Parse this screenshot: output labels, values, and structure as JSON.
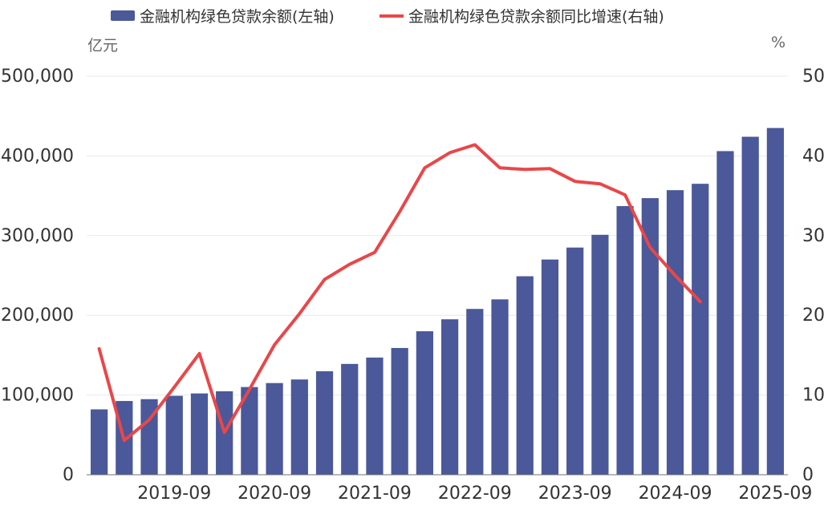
{
  "legend": {
    "bar_label": "金融机构绿色贷款余额(左轴)",
    "line_label": "金融机构绿色贷款余额同比增速(右轴)"
  },
  "units": {
    "left": "亿元",
    "right": "%"
  },
  "colors": {
    "bar": "#4B5899",
    "line": "#E8474A",
    "grid": "#E6E9F0",
    "axis": "#333333"
  },
  "chart_data": {
    "type": "bar",
    "title": "",
    "categories": [
      "2018-12",
      "2019-03",
      "2019-06",
      "2019-09",
      "2019-12",
      "2020-03",
      "2020-06",
      "2020-09",
      "2020-12",
      "2021-03",
      "2021-06",
      "2021-09",
      "2021-12",
      "2022-03",
      "2022-06",
      "2022-09",
      "2022-12",
      "2023-03",
      "2023-06",
      "2023-09",
      "2023-12",
      "2024-03",
      "2024-06",
      "2024-09",
      "2024-12",
      "2025-03",
      "2025-06",
      "2025-09"
    ],
    "x_tick_labels": [
      "2019-09",
      "2020-09",
      "2021-09",
      "2022-09",
      "2023-09",
      "2024-09",
      "2025-09"
    ],
    "series": [
      {
        "name": "金融机构绿色贷款余额(左轴)",
        "type": "bar",
        "axis": "left",
        "values": [
          82000,
          92500,
          94800,
          99000,
          102000,
          104700,
          110000,
          115000,
          119500,
          129800,
          139000,
          147000,
          159000,
          180000,
          195000,
          208000,
          220000,
          249000,
          270000,
          285000,
          301000,
          337000,
          347000,
          357000,
          365000,
          406000,
          424000,
          435000
        ]
      },
      {
        "name": "金融机构绿色贷款余额同比增速(右轴)",
        "type": "line",
        "axis": "right",
        "values": [
          15.8,
          4.3,
          6.9,
          11.0,
          15.2,
          5.3,
          10.7,
          16.3,
          20.2,
          24.5,
          26.4,
          27.9,
          33.0,
          38.5,
          40.4,
          41.4,
          38.5,
          38.3,
          38.4,
          36.8,
          36.5,
          35.1,
          28.5,
          25.0,
          21.7,
          null,
          null,
          null
        ]
      }
    ],
    "ylim_left": [
      0,
      500000
    ],
    "ylim_right": [
      0,
      50
    ],
    "yticks_left": [
      "0",
      "100,000",
      "200,000",
      "300,000",
      "400,000",
      "500,000"
    ],
    "yticks_right": [
      "0",
      "10",
      "20",
      "30",
      "40",
      "50"
    ],
    "grid": true,
    "legend_position": "top"
  }
}
